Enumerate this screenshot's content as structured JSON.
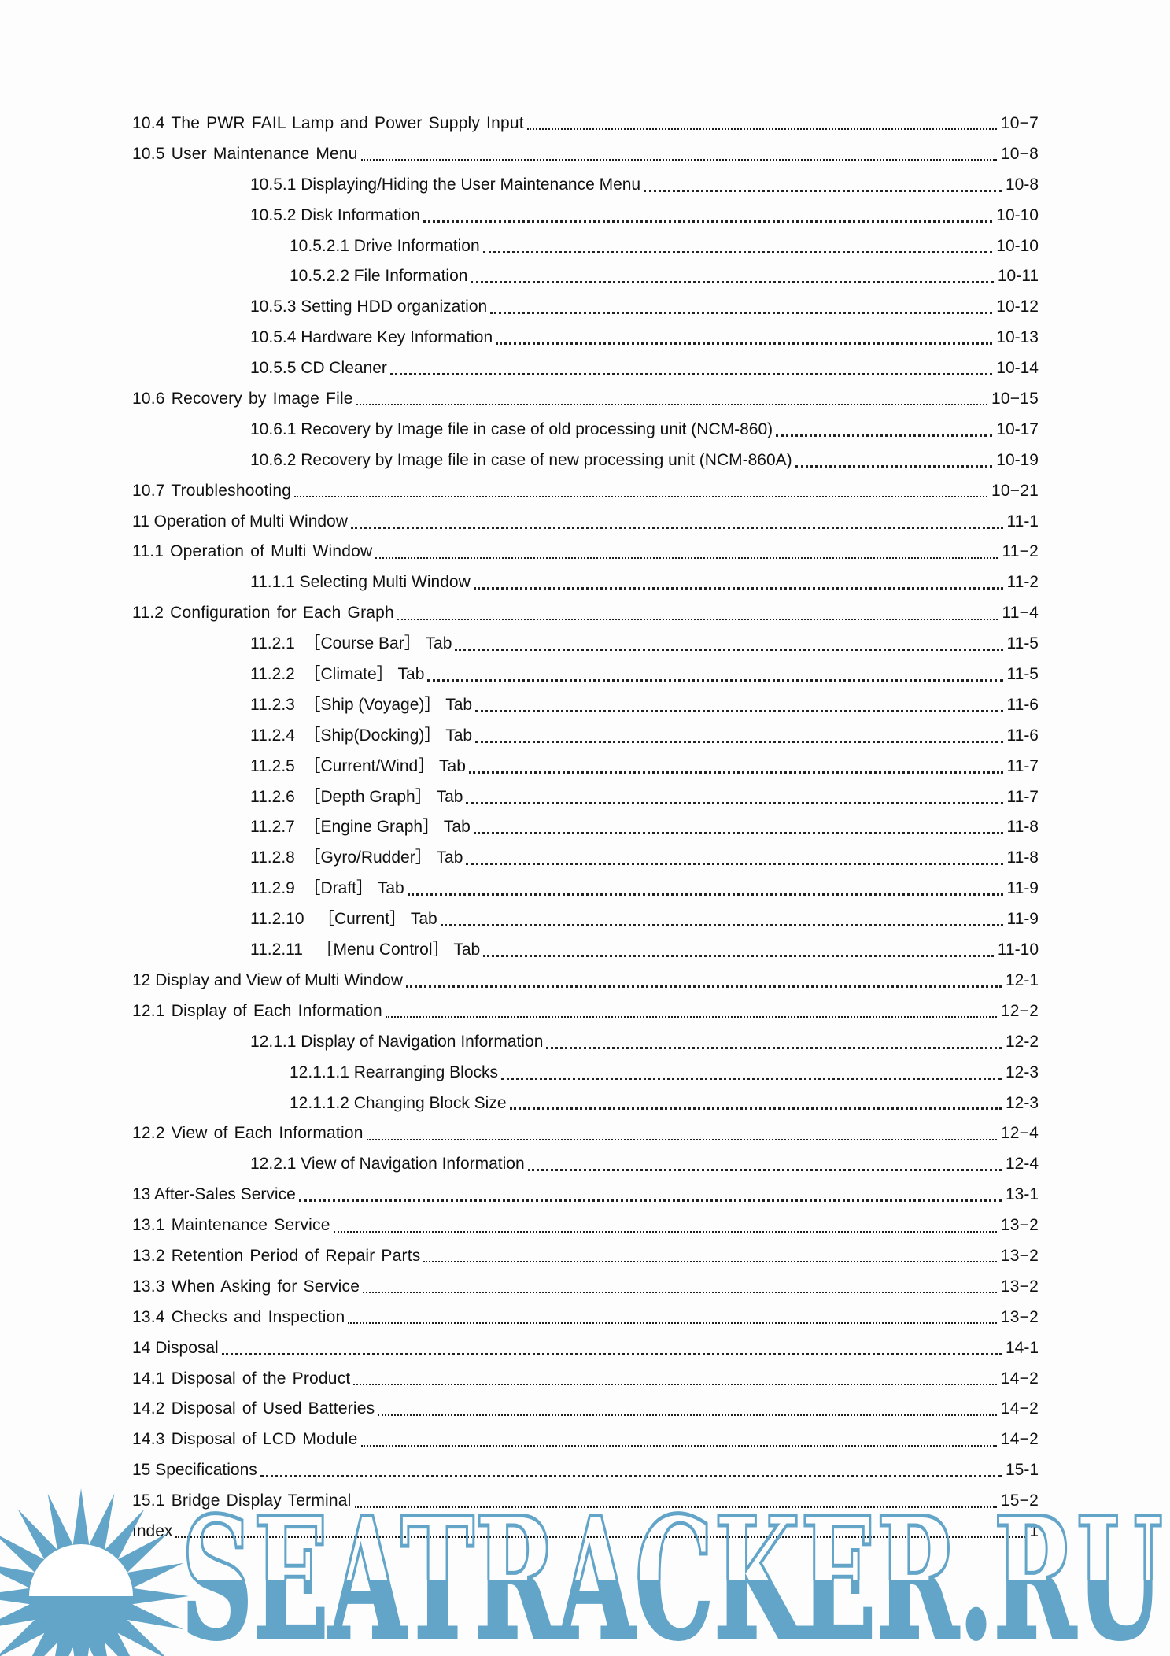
{
  "page": {
    "background": "#fdfdfd",
    "kind": "table-of-contents"
  },
  "toc": {
    "rows": [
      {
        "label": "10.4 The PWR FAIL Lamp and Power Supply Input",
        "page": "10−7",
        "level": 1,
        "font": "gothic",
        "dots": "fine"
      },
      {
        "label": "10.5 User Maintenance Menu",
        "page": "10−8",
        "level": 1,
        "font": "gothic",
        "dots": "fine"
      },
      {
        "label": "10.5.1 Displaying/Hiding the User Maintenance Menu",
        "page": "10-8",
        "level": 2,
        "font": "arial",
        "dots": "coarse"
      },
      {
        "label": "10.5.2 Disk Information",
        "page": "10-10",
        "level": 2,
        "font": "arial",
        "dots": "coarse"
      },
      {
        "label": "10.5.2.1 Drive Information",
        "page": "10-10",
        "level": 3,
        "font": "arial",
        "dots": "coarse"
      },
      {
        "label": "10.5.2.2 File Information",
        "page": "10-11",
        "level": 3,
        "font": "arial",
        "dots": "coarse"
      },
      {
        "label": "10.5.3 Setting HDD organization",
        "page": "10-12",
        "level": 2,
        "font": "arial",
        "dots": "coarse"
      },
      {
        "label": "10.5.4 Hardware Key Information",
        "page": "10-13",
        "level": 2,
        "font": "arial",
        "dots": "coarse"
      },
      {
        "label": "10.5.5 CD Cleaner",
        "page": "10-14",
        "level": 2,
        "font": "arial",
        "dots": "coarse"
      },
      {
        "label": "10.6 Recovery by Image File",
        "page": "10−15",
        "level": 1,
        "font": "gothic",
        "dots": "fine"
      },
      {
        "label": "10.6.1 Recovery by Image file in case of old processing unit (NCM-860)",
        "page": "10-17",
        "level": 2,
        "font": "arial",
        "dots": "coarse"
      },
      {
        "label": "10.6.2 Recovery by Image file in case of new processing unit (NCM-860A)",
        "page": "10-19",
        "level": 2,
        "font": "arial",
        "dots": "coarse"
      },
      {
        "label": "10.7 Troubleshooting",
        "page": "10−21",
        "level": 1,
        "font": "gothic",
        "dots": "fine"
      },
      {
        "label": "11 Operation of Multi Window",
        "page": "11-1",
        "level": 1,
        "font": "arial",
        "dots": "coarse"
      },
      {
        "label": "11.1 Operation of Multi Window",
        "page": "11−2",
        "level": 1,
        "font": "gothic",
        "dots": "fine"
      },
      {
        "label": "11.1.1 Selecting Multi Window",
        "page": "11-2",
        "level": 2,
        "font": "arial",
        "dots": "coarse"
      },
      {
        "label": "11.2 Configuration for Each Graph",
        "page": "11−4",
        "level": 1,
        "font": "gothic",
        "dots": "fine"
      },
      {
        "label": "11.2.1  ［Course Bar］ Tab",
        "page": "11-5",
        "level": 2,
        "font": "arial",
        "dots": "coarse"
      },
      {
        "label": "11.2.2  ［Climate］ Tab",
        "page": "11-5",
        "level": 2,
        "font": "arial",
        "dots": "coarse"
      },
      {
        "label": "11.2.3  ［Ship (Voyage)］ Tab",
        "page": "11-6",
        "level": 2,
        "font": "arial",
        "dots": "coarse"
      },
      {
        "label": "11.2.4  ［Ship(Docking)］ Tab",
        "page": "11-6",
        "level": 2,
        "font": "arial",
        "dots": "coarse"
      },
      {
        "label": "11.2.5  ［Current/Wind］ Tab",
        "page": "11-7",
        "level": 2,
        "font": "arial",
        "dots": "coarse"
      },
      {
        "label": "11.2.6  ［Depth Graph］ Tab",
        "page": "11-7",
        "level": 2,
        "font": "arial",
        "dots": "coarse"
      },
      {
        "label": "11.2.7  ［Engine Graph］ Tab",
        "page": "11-8",
        "level": 2,
        "font": "arial",
        "dots": "coarse"
      },
      {
        "label": "11.2.8  ［Gyro/Rudder］ Tab",
        "page": "11-8",
        "level": 2,
        "font": "arial",
        "dots": "coarse"
      },
      {
        "label": "11.2.9  ［Draft］ Tab",
        "page": "11-9",
        "level": 2,
        "font": "arial",
        "dots": "coarse"
      },
      {
        "label": "11.2.10   ［Current］ Tab",
        "page": "11-9",
        "level": 2,
        "font": "arial",
        "dots": "coarse"
      },
      {
        "label": "11.2.11   ［Menu Control］ Tab",
        "page": "11-10",
        "level": 2,
        "font": "arial",
        "dots": "coarse"
      },
      {
        "label": "12 Display and View of Multi Window",
        "page": "12-1",
        "level": 1,
        "font": "arial",
        "dots": "coarse"
      },
      {
        "label": "12.1 Display of Each Information",
        "page": "12−2",
        "level": 1,
        "font": "gothic",
        "dots": "fine"
      },
      {
        "label": "12.1.1 Display of Navigation Information",
        "page": "12-2",
        "level": 2,
        "font": "arial",
        "dots": "coarse"
      },
      {
        "label": "12.1.1.1 Rearranging Blocks",
        "page": "12-3",
        "level": 3,
        "font": "arial",
        "dots": "coarse"
      },
      {
        "label": "12.1.1.2 Changing Block Size",
        "page": "12-3",
        "level": 3,
        "font": "arial",
        "dots": "coarse"
      },
      {
        "label": "12.2 View of Each Information",
        "page": "12−4",
        "level": 1,
        "font": "gothic",
        "dots": "fine"
      },
      {
        "label": "12.2.1 View of Navigation Information",
        "page": "12-4",
        "level": 2,
        "font": "arial",
        "dots": "coarse"
      },
      {
        "label": "13 After-Sales Service",
        "page": "13-1",
        "level": 1,
        "font": "arial",
        "dots": "coarse"
      },
      {
        "label": "13.1 Maintenance Service",
        "page": "13−2",
        "level": 1,
        "font": "gothic",
        "dots": "fine"
      },
      {
        "label": "13.2 Retention Period of Repair Parts",
        "page": "13−2",
        "level": 1,
        "font": "gothic",
        "dots": "fine"
      },
      {
        "label": "13.3 When Asking for Service",
        "page": "13−2",
        "level": 1,
        "font": "gothic",
        "dots": "fine"
      },
      {
        "label": "13.4 Checks and Inspection",
        "page": "13−2",
        "level": 1,
        "font": "gothic",
        "dots": "fine"
      },
      {
        "label": "14 Disposal",
        "page": "14-1",
        "level": 1,
        "font": "arial",
        "dots": "coarse"
      },
      {
        "label": "14.1 Disposal of the Product",
        "page": "14−2",
        "level": 1,
        "font": "gothic",
        "dots": "fine"
      },
      {
        "label": "14.2 Disposal of Used Batteries",
        "page": "14−2",
        "level": 1,
        "font": "gothic",
        "dots": "fine"
      },
      {
        "label": "14.3 Disposal of LCD Module",
        "page": "14−2",
        "level": 1,
        "font": "gothic",
        "dots": "fine"
      },
      {
        "label": "15 Specifications",
        "page": "15-1",
        "level": 1,
        "font": "arial",
        "dots": "coarse"
      },
      {
        "label": "15.1 Bridge Display Terminal",
        "page": "15−2",
        "level": 1,
        "font": "gothic",
        "dots": "fine"
      },
      {
        "label": "Index",
        "page": "1",
        "level": 1,
        "font": "arial",
        "dots": "fine"
      }
    ]
  },
  "watermark": {
    "text": "SEATRACKER.RU",
    "color": "#62a5c9",
    "sun_icon": "sun-over-sea-icon"
  }
}
